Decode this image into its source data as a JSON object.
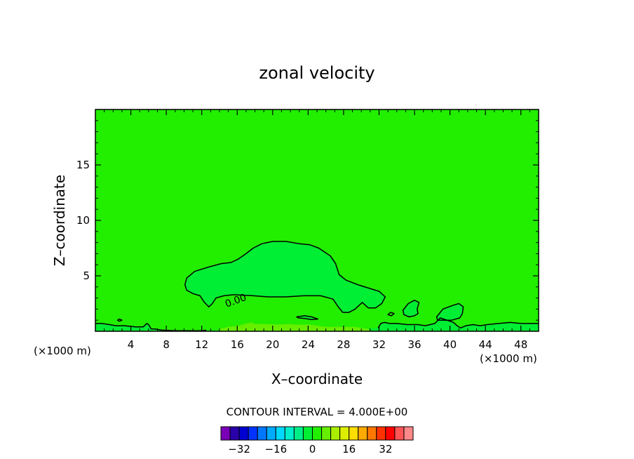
{
  "chart_data": {
    "type": "contour",
    "title": "zonal velocity",
    "xlabel": "X–coordinate",
    "ylabel": "Z–coordinate",
    "x_units": "(×1000 m)",
    "x_units_right": "(×1000 m)",
    "xlim": [
      0,
      50
    ],
    "ylim": [
      0,
      20
    ],
    "x_ticks": [
      4,
      8,
      12,
      16,
      20,
      24,
      28,
      32,
      36,
      40,
      44,
      48
    ],
    "y_ticks": [
      5,
      10,
      15
    ],
    "contour_interval_text": "CONTOUR INTERVAL = 4.000E+00",
    "contour_label": "0.00",
    "background_color": "#22ee00",
    "regions": [
      {
        "name": "region-positive-shallow",
        "fill": "#00ee33",
        "points": [
          [
            10.1,
            4.2
          ],
          [
            10.3,
            4.8
          ],
          [
            11.2,
            5.4
          ],
          [
            12.8,
            5.8
          ],
          [
            14.2,
            6.1
          ],
          [
            15.3,
            6.2
          ],
          [
            16.1,
            6.5
          ],
          [
            17,
            7
          ],
          [
            17.8,
            7.5
          ],
          [
            18.8,
            7.9
          ],
          [
            20,
            8.1
          ],
          [
            21.5,
            8.1
          ],
          [
            23,
            7.9
          ],
          [
            24.2,
            7.8
          ],
          [
            25.2,
            7.5
          ],
          [
            26.5,
            6.8
          ],
          [
            27.1,
            6.1
          ],
          [
            27.5,
            5.1
          ],
          [
            28.3,
            4.6
          ],
          [
            29.6,
            4.2
          ],
          [
            30.8,
            3.9
          ],
          [
            32,
            3.6
          ],
          [
            32.7,
            3.1
          ],
          [
            32.3,
            2.5
          ],
          [
            31.6,
            2.1
          ],
          [
            30.8,
            2.1
          ],
          [
            30.1,
            2.6
          ],
          [
            29.3,
            2
          ],
          [
            28.6,
            1.7
          ],
          [
            27.9,
            1.7
          ],
          [
            27.4,
            2.2
          ],
          [
            26.8,
            2.9
          ],
          [
            25.4,
            3.2
          ],
          [
            23.5,
            3.2
          ],
          [
            21.5,
            3.1
          ],
          [
            19.5,
            3.1
          ],
          [
            17.8,
            3.2
          ],
          [
            15.6,
            3.3
          ],
          [
            14.5,
            3.2
          ],
          [
            13.6,
            3
          ],
          [
            13.2,
            2.5
          ],
          [
            12.8,
            2.2
          ],
          [
            12.3,
            2.6
          ],
          [
            11.8,
            3.2
          ],
          [
            11,
            3.4
          ],
          [
            10.3,
            3.7
          ]
        ]
      },
      {
        "name": "region-surface-strip",
        "fill": "#00ee33",
        "points": [
          [
            0,
            0
          ],
          [
            50,
            0
          ],
          [
            50,
            0.7
          ],
          [
            48,
            0.7
          ],
          [
            46.8,
            0.8
          ],
          [
            45.5,
            0.7
          ],
          [
            44.2,
            0.6
          ],
          [
            43.4,
            0.5
          ],
          [
            42.6,
            0.6
          ],
          [
            41.8,
            0.5
          ],
          [
            41.2,
            0.3
          ],
          [
            40.8,
            0.5
          ],
          [
            40.4,
            0.8
          ],
          [
            38.9,
            1.2
          ],
          [
            38.3,
            0.7
          ],
          [
            37.2,
            0.5
          ],
          [
            36.4,
            0.6
          ],
          [
            35.2,
            0.6
          ],
          [
            34,
            0.7
          ],
          [
            33.2,
            0.7
          ],
          [
            32.6,
            0.8
          ],
          [
            32.2,
            0.7
          ],
          [
            31.9,
            0.3
          ],
          [
            30.8,
            0.2
          ],
          [
            29.8,
            0.3
          ],
          [
            29,
            0.1
          ],
          [
            27.5,
            0.1
          ],
          [
            25,
            0.1
          ],
          [
            22,
            0.1
          ],
          [
            18,
            0.1
          ],
          [
            14,
            0.1
          ],
          [
            12,
            0.05
          ],
          [
            9,
            0.05
          ],
          [
            7.5,
            0.1
          ],
          [
            6.7,
            0.2
          ],
          [
            6.3,
            0.2
          ],
          [
            6,
            0.6
          ],
          [
            5.8,
            0.7
          ],
          [
            5.4,
            0.4
          ],
          [
            4.5,
            0.4
          ],
          [
            3.3,
            0.5
          ],
          [
            2.3,
            0.5
          ],
          [
            1.6,
            0.6
          ],
          [
            0.7,
            0.7
          ],
          [
            0,
            0.7
          ]
        ]
      },
      {
        "name": "region-blob-33",
        "fill": "#00ee33",
        "points": [
          [
            34.7,
            1.9
          ],
          [
            35.3,
            2.5
          ],
          [
            36,
            2.8
          ],
          [
            36.5,
            2.6
          ],
          [
            36.3,
            2
          ],
          [
            36.4,
            1.6
          ],
          [
            36,
            1.4
          ],
          [
            35.4,
            1.3
          ],
          [
            34.8,
            1.5
          ]
        ]
      },
      {
        "name": "region-blob-39",
        "fill": "#00ee33",
        "points": [
          [
            38.5,
            1.3
          ],
          [
            39.2,
            2
          ],
          [
            40.2,
            2.3
          ],
          [
            41,
            2.5
          ],
          [
            41.5,
            2.2
          ],
          [
            41.4,
            1.6
          ],
          [
            41.1,
            1.2
          ],
          [
            40.2,
            1
          ],
          [
            39.2,
            1
          ],
          [
            38.6,
            1
          ]
        ]
      },
      {
        "name": "region-blob-23",
        "fill": "#00ee33",
        "points": [
          [
            22.7,
            1.3
          ],
          [
            23.6,
            1.4
          ],
          [
            24.4,
            1.3
          ],
          [
            25.1,
            1.1
          ],
          [
            24.4,
            1.05
          ],
          [
            23.6,
            1.15
          ],
          [
            22.9,
            1.2
          ]
        ]
      },
      {
        "name": "region-low-negative",
        "fill": "#66ee00",
        "points": [
          [
            13.8,
            0
          ],
          [
            31,
            0
          ],
          [
            30.8,
            0.2
          ],
          [
            29.2,
            0.4
          ],
          [
            27.4,
            0.4
          ],
          [
            26,
            0.4
          ],
          [
            25,
            0.5
          ],
          [
            24.2,
            0.6
          ],
          [
            22.5,
            0.6
          ],
          [
            21.8,
            0.65
          ],
          [
            20.6,
            0.6
          ],
          [
            19.3,
            0.65
          ],
          [
            18,
            0.65
          ],
          [
            17.6,
            0.8
          ],
          [
            17.1,
            0.7
          ],
          [
            16.1,
            0.5
          ],
          [
            15,
            0.4
          ],
          [
            14,
            0.2
          ]
        ]
      }
    ],
    "contours": [
      {
        "name": "contour-main-closed",
        "closed": true,
        "points": [
          [
            10.1,
            4.2
          ],
          [
            10.3,
            4.8
          ],
          [
            11.2,
            5.4
          ],
          [
            12.8,
            5.8
          ],
          [
            14.2,
            6.1
          ],
          [
            15.3,
            6.2
          ],
          [
            16.1,
            6.5
          ],
          [
            17,
            7
          ],
          [
            17.8,
            7.5
          ],
          [
            18.8,
            7.9
          ],
          [
            20,
            8.1
          ],
          [
            21.5,
            8.1
          ],
          [
            23,
            7.9
          ],
          [
            24.2,
            7.8
          ],
          [
            25.2,
            7.5
          ],
          [
            26.5,
            6.8
          ],
          [
            27.1,
            6.1
          ],
          [
            27.5,
            5.1
          ],
          [
            28.3,
            4.6
          ],
          [
            29.6,
            4.2
          ],
          [
            30.8,
            3.9
          ],
          [
            32,
            3.6
          ],
          [
            32.7,
            3.1
          ],
          [
            32.3,
            2.5
          ],
          [
            31.6,
            2.1
          ],
          [
            30.8,
            2.1
          ],
          [
            30.1,
            2.6
          ],
          [
            29.3,
            2
          ],
          [
            28.6,
            1.7
          ],
          [
            27.9,
            1.7
          ],
          [
            27.4,
            2.2
          ],
          [
            26.8,
            2.9
          ],
          [
            25.4,
            3.2
          ],
          [
            23.5,
            3.2
          ],
          [
            21.5,
            3.1
          ],
          [
            19.5,
            3.1
          ],
          [
            17.8,
            3.2
          ],
          [
            15.6,
            3.3
          ],
          [
            14.5,
            3.2
          ],
          [
            13.6,
            3
          ],
          [
            13.2,
            2.5
          ],
          [
            12.8,
            2.2
          ],
          [
            12.3,
            2.6
          ],
          [
            11.8,
            3.2
          ],
          [
            11,
            3.4
          ],
          [
            10.3,
            3.7
          ]
        ]
      },
      {
        "name": "contour-surface",
        "closed": false,
        "points": [
          [
            0,
            0.7
          ],
          [
            0.7,
            0.7
          ],
          [
            1.6,
            0.6
          ],
          [
            2.3,
            0.5
          ],
          [
            3.3,
            0.5
          ],
          [
            4.5,
            0.4
          ],
          [
            5.4,
            0.4
          ],
          [
            5.8,
            0.7
          ],
          [
            6,
            0.6
          ],
          [
            6.3,
            0.2
          ],
          [
            6.7,
            0.2
          ],
          [
            7.5,
            0.1
          ],
          [
            9,
            0.05
          ],
          [
            12,
            0.05
          ],
          [
            12.5,
            0.1
          ]
        ]
      },
      {
        "name": "contour-surface-right",
        "closed": false,
        "points": [
          [
            31.9,
            0.3
          ],
          [
            32.2,
            0.7
          ],
          [
            32.6,
            0.8
          ],
          [
            33.2,
            0.7
          ],
          [
            34,
            0.7
          ],
          [
            35.2,
            0.6
          ],
          [
            36.4,
            0.6
          ],
          [
            37.2,
            0.5
          ],
          [
            38.3,
            0.7
          ],
          [
            38.9,
            1.2
          ],
          [
            40.4,
            0.8
          ],
          [
            40.8,
            0.5
          ],
          [
            41.2,
            0.3
          ],
          [
            41.8,
            0.5
          ],
          [
            42.6,
            0.6
          ],
          [
            43.4,
            0.5
          ],
          [
            44.2,
            0.6
          ],
          [
            45.5,
            0.7
          ],
          [
            46.8,
            0.8
          ],
          [
            48,
            0.7
          ],
          [
            50,
            0.7
          ]
        ]
      },
      {
        "name": "contour-blob-33",
        "closed": true,
        "points": [
          [
            34.7,
            1.9
          ],
          [
            35.3,
            2.5
          ],
          [
            36,
            2.8
          ],
          [
            36.5,
            2.6
          ],
          [
            36.3,
            2
          ],
          [
            36.4,
            1.6
          ],
          [
            36,
            1.4
          ],
          [
            35.4,
            1.3
          ],
          [
            34.8,
            1.5
          ]
        ]
      },
      {
        "name": "contour-blob-39",
        "closed": true,
        "points": [
          [
            38.5,
            1.3
          ],
          [
            39.2,
            2
          ],
          [
            40.2,
            2.3
          ],
          [
            41,
            2.5
          ],
          [
            41.5,
            2.2
          ],
          [
            41.4,
            1.6
          ],
          [
            41.1,
            1.2
          ],
          [
            40.2,
            1
          ],
          [
            39.2,
            1
          ],
          [
            38.6,
            1
          ]
        ]
      },
      {
        "name": "contour-blob-23",
        "closed": true,
        "points": [
          [
            22.7,
            1.3
          ],
          [
            23.6,
            1.4
          ],
          [
            24.4,
            1.3
          ],
          [
            25.1,
            1.1
          ],
          [
            24.4,
            1.05
          ],
          [
            23.6,
            1.15
          ],
          [
            22.9,
            1.2
          ]
        ]
      },
      {
        "name": "contour-small-33",
        "closed": true,
        "points": [
          [
            33,
            1.5
          ],
          [
            33.3,
            1.7
          ],
          [
            33.7,
            1.6
          ],
          [
            33.4,
            1.4
          ]
        ]
      },
      {
        "name": "contour-small-3",
        "closed": true,
        "points": [
          [
            2.5,
            1
          ],
          [
            2.7,
            1.1
          ],
          [
            3,
            1
          ],
          [
            2.7,
            0.9
          ]
        ]
      }
    ],
    "legend": {
      "colors": [
        "#7a00b8",
        "#2a00a8",
        "#0000d0",
        "#0033ff",
        "#0077ff",
        "#00aaff",
        "#00d8ff",
        "#00eecc",
        "#00ee88",
        "#00ee33",
        "#22ee00",
        "#66ee00",
        "#aaee00",
        "#dded00",
        "#ffdd00",
        "#ffaa00",
        "#ff7700",
        "#ff3300",
        "#ff0000",
        "#ff5555",
        "#ff8888"
      ],
      "tick_values": [
        -32,
        -16,
        0,
        16,
        32
      ],
      "tick_labels": [
        "−32",
        "−16",
        "0",
        "16",
        "32"
      ],
      "min": -40,
      "max": 44
    }
  }
}
